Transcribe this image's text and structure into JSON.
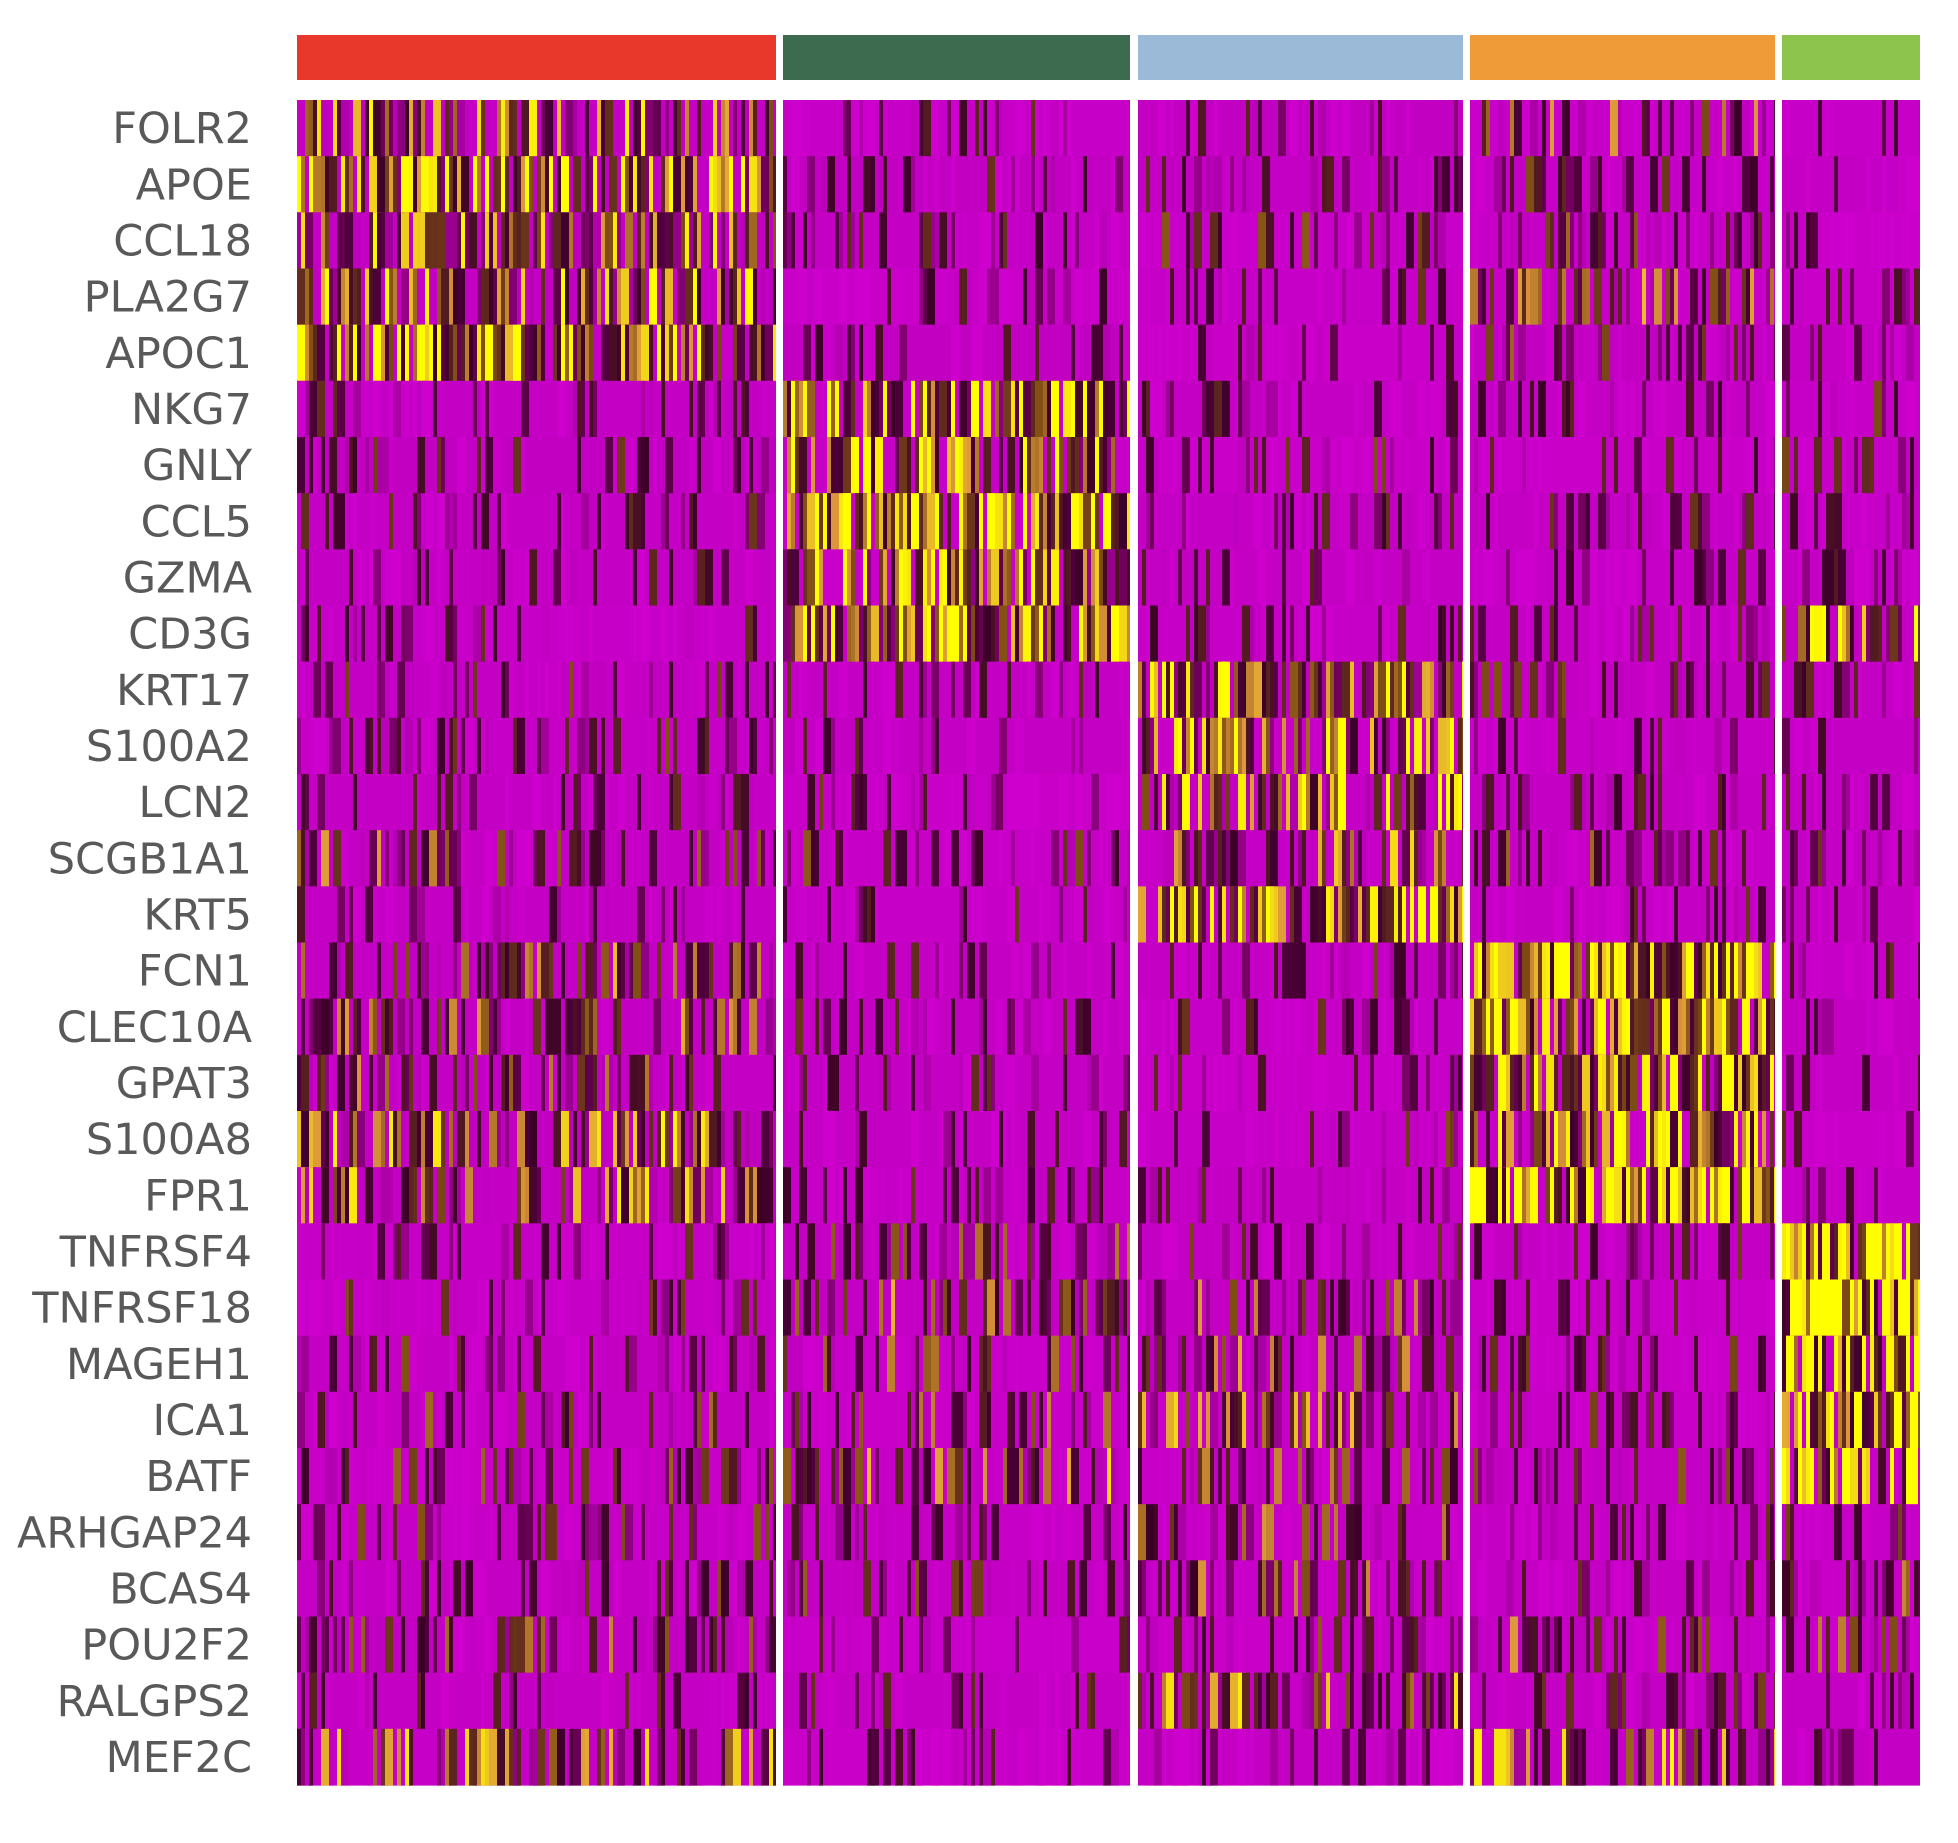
{
  "chart_data": {
    "type": "heatmap",
    "title": "",
    "xlabel": "",
    "ylabel": "",
    "legend": "none",
    "cluster_colors": [
      "#e8382c",
      "#3d6b4f",
      "#9bbad8",
      "#ef9b38",
      "#8dc44e"
    ],
    "rows": [
      "FOLR2",
      "APOE",
      "CCL18",
      "PLA2G7",
      "APOC1",
      "NKG7",
      "GNLY",
      "CCL5",
      "GZMA",
      "CD3G",
      "KRT17",
      "S100A2",
      "LCN2",
      "SCGB1A1",
      "KRT5",
      "FCN1",
      "CLEC10A",
      "GPAT3",
      "S100A8",
      "FPR1",
      "TNFRSF4",
      "TNFRSF18",
      "MAGEH1",
      "ICA1",
      "BATF",
      "ARHGAP24",
      "BCAS4",
      "POU2F2",
      "RALGPS2",
      "MEF2C"
    ],
    "row_marker_cluster": [
      0,
      0,
      0,
      0,
      0,
      1,
      1,
      1,
      1,
      1,
      2,
      2,
      2,
      2,
      2,
      3,
      3,
      3,
      3,
      3,
      4,
      4,
      4,
      4,
      4,
      2,
      2,
      3,
      2,
      3
    ],
    "mean_expression": [
      [
        0.55,
        0.12,
        0.12,
        0.35,
        0.12
      ],
      [
        0.75,
        0.1,
        0.1,
        0.2,
        0.08
      ],
      [
        0.55,
        0.12,
        0.25,
        0.25,
        0.12
      ],
      [
        0.6,
        0.1,
        0.12,
        0.4,
        0.12
      ],
      [
        0.8,
        0.08,
        0.1,
        0.25,
        0.1
      ],
      [
        0.15,
        0.75,
        0.15,
        0.15,
        0.2
      ],
      [
        0.2,
        0.7,
        0.2,
        0.2,
        0.25
      ],
      [
        0.15,
        0.85,
        0.12,
        0.15,
        0.2
      ],
      [
        0.12,
        0.7,
        0.12,
        0.12,
        0.12
      ],
      [
        0.12,
        0.75,
        0.12,
        0.15,
        0.75
      ],
      [
        0.2,
        0.12,
        0.7,
        0.2,
        0.12
      ],
      [
        0.2,
        0.12,
        0.7,
        0.2,
        0.12
      ],
      [
        0.15,
        0.2,
        0.6,
        0.15,
        0.12
      ],
      [
        0.35,
        0.25,
        0.45,
        0.3,
        0.25
      ],
      [
        0.12,
        0.12,
        0.75,
        0.15,
        0.12
      ],
      [
        0.4,
        0.1,
        0.2,
        0.8,
        0.12
      ],
      [
        0.4,
        0.1,
        0.15,
        0.8,
        0.12
      ],
      [
        0.35,
        0.12,
        0.2,
        0.75,
        0.12
      ],
      [
        0.55,
        0.1,
        0.2,
        0.7,
        0.1
      ],
      [
        0.5,
        0.1,
        0.15,
        0.85,
        0.1
      ],
      [
        0.15,
        0.3,
        0.2,
        0.2,
        0.85
      ],
      [
        0.2,
        0.4,
        0.35,
        0.2,
        0.9
      ],
      [
        0.2,
        0.3,
        0.4,
        0.2,
        0.85
      ],
      [
        0.25,
        0.3,
        0.45,
        0.2,
        0.85
      ],
      [
        0.25,
        0.45,
        0.35,
        0.25,
        0.75
      ],
      [
        0.25,
        0.15,
        0.35,
        0.15,
        0.2
      ],
      [
        0.2,
        0.25,
        0.35,
        0.15,
        0.3
      ],
      [
        0.3,
        0.15,
        0.25,
        0.35,
        0.3
      ],
      [
        0.15,
        0.1,
        0.5,
        0.25,
        0.15
      ],
      [
        0.5,
        0.08,
        0.12,
        0.55,
        0.12
      ]
    ]
  }
}
